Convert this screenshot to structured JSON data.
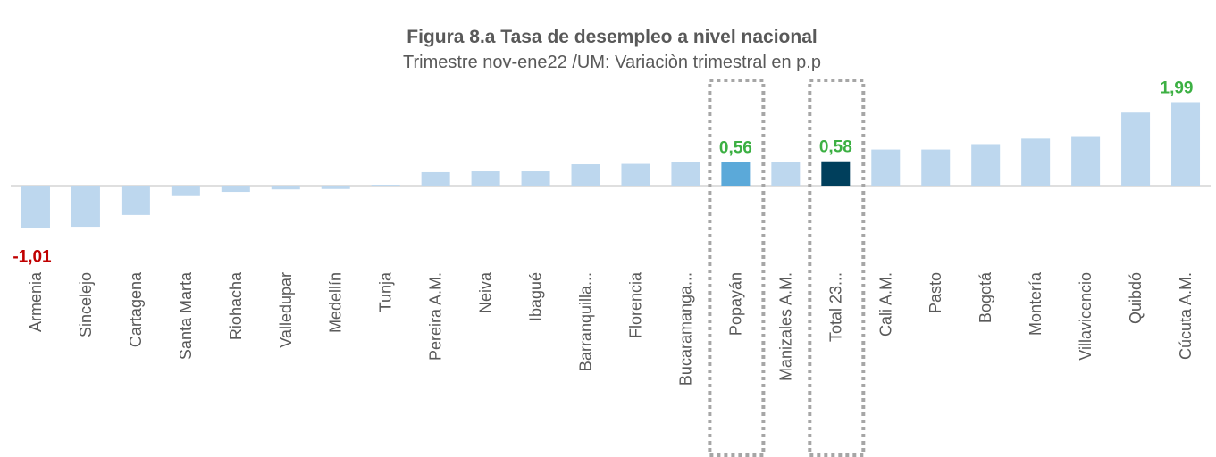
{
  "chart_data": {
    "type": "bar",
    "title": "Figura 8.a Tasa de desempleo a nivel nacional",
    "subtitle": "Trimestre nov-ene22 /UM: Variaciòn trimestral en p.p",
    "categories": [
      "Armenia",
      "Sincelejo",
      "Cartagena",
      "Santa Marta",
      "Riohacha",
      "Valledupar",
      "Medellín",
      "Tunja",
      "Pereira A.M.",
      "Neiva",
      "Ibagué",
      "Barranquilla...",
      "Florencia",
      "Bucaramanga...",
      "Popayán",
      "Manizales A.M.",
      "Total 23...",
      "Cali A.M.",
      "Pasto",
      "Bogotá",
      "Montería",
      "Villavicencio",
      "Quibdó",
      "Cúcuta A.M."
    ],
    "values": [
      -1.01,
      -0.98,
      -0.7,
      -0.25,
      -0.15,
      -0.09,
      -0.08,
      0.02,
      0.32,
      0.34,
      0.34,
      0.51,
      0.52,
      0.56,
      0.56,
      0.57,
      0.58,
      0.86,
      0.86,
      0.99,
      1.12,
      1.18,
      1.74,
      1.99
    ],
    "value_labels": [
      "-1,01",
      null,
      null,
      null,
      null,
      null,
      null,
      null,
      null,
      null,
      null,
      null,
      null,
      null,
      "0,56",
      null,
      "0,58",
      null,
      null,
      null,
      null,
      null,
      null,
      "1,99"
    ],
    "color": "#bdd7ee",
    "colors": [
      "#bdd7ee",
      "#bdd7ee",
      "#bdd7ee",
      "#bdd7ee",
      "#bdd7ee",
      "#bdd7ee",
      "#bdd7ee",
      "#bdd7ee",
      "#bdd7ee",
      "#bdd7ee",
      "#bdd7ee",
      "#bdd7ee",
      "#bdd7ee",
      "#bdd7ee",
      "#5ba9d9",
      "#bdd7ee",
      "#003f5c",
      "#bdd7ee",
      "#bdd7ee",
      "#bdd7ee",
      "#bdd7ee",
      "#bdd7ee",
      "#bdd7ee",
      "#bdd7ee"
    ]
  }
}
